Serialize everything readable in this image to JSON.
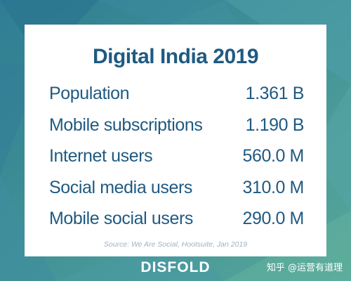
{
  "title": "Digital India 2019",
  "stats": [
    {
      "label": "Population",
      "value": "1.361 B"
    },
    {
      "label": "Mobile subscriptions",
      "value": "1.190 B"
    },
    {
      "label": "Internet users",
      "value": "560.0 M"
    },
    {
      "label": "Social media users",
      "value": "310.0 M"
    },
    {
      "label": "Mobile social users",
      "value": "290.0 M"
    }
  ],
  "source": "Source: We Are Social, Hootsuite, Jan 2019",
  "brand": "DISFOLD",
  "watermark": "知乎 @运营有道理",
  "colors": {
    "text": "#1f5a82",
    "background_teal": "#3f8f9a",
    "card": "#ffffff"
  }
}
